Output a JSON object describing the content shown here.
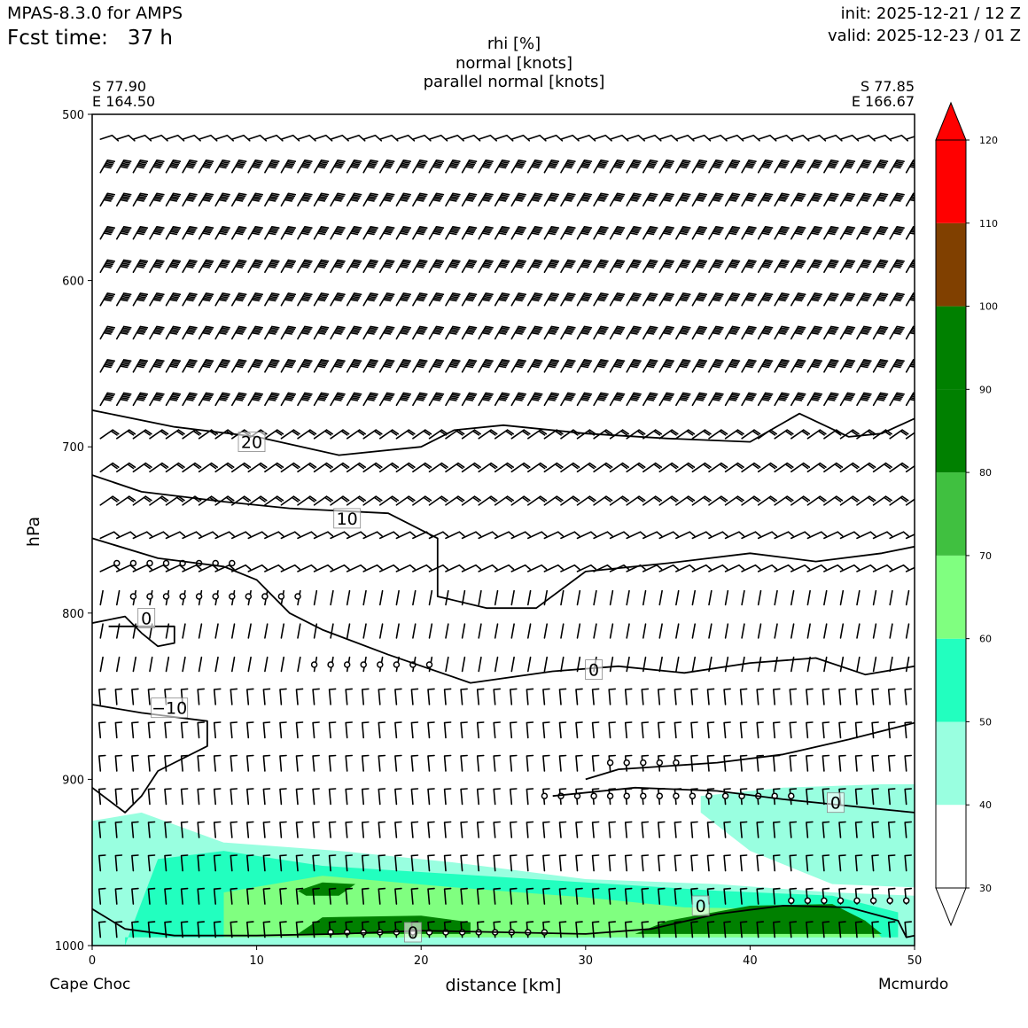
{
  "header": {
    "model": "MPAS-8.3.0 for AMPS",
    "fcst_label": "Fcst time:",
    "fcst_value": "37 h",
    "init": "init: 2025-12-21 / 12 Z",
    "valid": "valid: 2025-12-23 / 01 Z"
  },
  "title_lines": [
    "rhi [%]",
    "normal [knots]",
    "parallel normal [knots]"
  ],
  "endpoints": {
    "left": {
      "lat": "S 77.90",
      "lon": "E 164.50",
      "name": "Cape Choc"
    },
    "right": {
      "lat": "S 77.85",
      "lon": "E 166.67",
      "name": "Mcmurdo"
    }
  },
  "chart_data": {
    "type": "heatmap",
    "xlabel": "distance [km]",
    "ylabel": "hPa",
    "xlim": [
      0,
      50
    ],
    "ylim": [
      1000,
      500
    ],
    "x_ticks": [
      "0",
      "10",
      "20",
      "30",
      "40",
      "50"
    ],
    "y_ticks": [
      "500",
      "600",
      "700",
      "800",
      "900",
      "1000"
    ],
    "colorbar": {
      "levels": [
        30,
        40,
        50,
        60,
        70,
        80,
        90,
        100,
        110,
        120
      ],
      "tick_labels": [
        "30",
        "40",
        "50",
        "60",
        "70",
        "80",
        "90",
        "100",
        "110",
        "120"
      ],
      "colors": [
        "#ffffff",
        "#99ffe0",
        "#22ffbf",
        "#80ff80",
        "#40c040",
        "#008000",
        "#008000",
        "#804000",
        "#ff0000"
      ],
      "extend": "both"
    },
    "rhi_regions": [
      {
        "level": 40,
        "color": "#99ffe0",
        "points": [
          [
            0,
            925
          ],
          [
            3,
            920
          ],
          [
            8,
            938
          ],
          [
            15,
            943
          ],
          [
            22,
            950
          ],
          [
            30,
            960
          ],
          [
            38,
            963
          ],
          [
            45,
            968
          ],
          [
            50,
            970
          ],
          [
            50,
            1000
          ],
          [
            0,
            1000
          ]
        ]
      },
      {
        "level": 40,
        "color": "#99ffe0",
        "points": [
          [
            37,
            910
          ],
          [
            42,
            905
          ],
          [
            48,
            903
          ],
          [
            50,
            903
          ],
          [
            50,
            965
          ],
          [
            45,
            963
          ],
          [
            40,
            943
          ],
          [
            37,
            920
          ]
        ]
      },
      {
        "level": 50,
        "color": "#22ffbf",
        "points": [
          [
            2,
            1000
          ],
          [
            4,
            948
          ],
          [
            8,
            943
          ],
          [
            14,
            952
          ],
          [
            22,
            957
          ],
          [
            30,
            962
          ],
          [
            38,
            967
          ],
          [
            45,
            970
          ],
          [
            49,
            980
          ],
          [
            49,
            995
          ],
          [
            2,
            995
          ]
        ]
      },
      {
        "level": 60,
        "color": "#80ff80",
        "points": [
          [
            8,
            968
          ],
          [
            14,
            958
          ],
          [
            22,
            965
          ],
          [
            30,
            971
          ],
          [
            36,
            977
          ],
          [
            42,
            978
          ],
          [
            47,
            985
          ],
          [
            48,
            995
          ],
          [
            8,
            995
          ]
        ]
      },
      {
        "level": 80,
        "color": "#008000",
        "points": [
          [
            12.5,
            993
          ],
          [
            14,
            983
          ],
          [
            20,
            982
          ],
          [
            23,
            986
          ],
          [
            23,
            993
          ]
        ]
      },
      {
        "level": 80,
        "color": "#008000",
        "points": [
          [
            33,
            993
          ],
          [
            35,
            985
          ],
          [
            40,
            976
          ],
          [
            45,
            975
          ],
          [
            47,
            985
          ],
          [
            48,
            993
          ]
        ]
      },
      {
        "level": 80,
        "color": "#008000",
        "points": [
          [
            12.5,
            967
          ],
          [
            14,
            962
          ],
          [
            16,
            963
          ],
          [
            15,
            970
          ],
          [
            13,
            970
          ]
        ]
      }
    ],
    "contours": [
      {
        "value": 20,
        "points": [
          [
            0,
            678
          ],
          [
            5,
            688
          ],
          [
            10,
            694
          ],
          [
            15,
            705
          ],
          [
            20,
            700
          ],
          [
            22,
            690
          ],
          [
            25,
            687
          ],
          [
            30,
            692
          ],
          [
            35,
            695
          ],
          [
            40,
            697
          ],
          [
            43,
            680
          ],
          [
            46,
            694
          ],
          [
            48,
            692
          ],
          [
            50,
            683
          ]
        ]
      },
      {
        "value": 10,
        "points": [
          [
            0,
            717
          ],
          [
            3,
            727
          ],
          [
            8,
            733
          ],
          [
            12,
            737
          ],
          [
            18,
            740
          ],
          [
            21,
            755
          ],
          [
            21,
            790
          ],
          [
            24,
            797
          ],
          [
            27,
            797
          ],
          [
            30,
            775
          ],
          [
            35,
            770
          ],
          [
            40,
            764
          ],
          [
            44,
            769
          ],
          [
            48,
            764
          ],
          [
            50,
            760
          ]
        ]
      },
      {
        "value": 0,
        "points": [
          [
            0,
            755
          ],
          [
            4,
            767
          ],
          [
            8,
            772
          ],
          [
            10,
            780
          ],
          [
            12,
            800
          ],
          [
            14,
            810
          ],
          [
            18,
            825
          ],
          [
            23,
            842
          ],
          [
            28,
            835
          ],
          [
            32,
            832
          ],
          [
            36,
            836
          ],
          [
            40,
            830
          ],
          [
            44,
            827
          ],
          [
            47,
            837
          ],
          [
            50,
            832
          ]
        ]
      },
      {
        "value": 0,
        "points": [
          [
            0,
            806
          ],
          [
            2,
            802
          ],
          [
            3,
            812
          ],
          [
            4,
            820
          ],
          [
            5,
            818
          ],
          [
            5,
            808
          ],
          [
            1,
            808
          ]
        ]
      },
      {
        "value": -10,
        "points": [
          [
            0,
            855
          ],
          [
            3,
            860
          ],
          [
            7,
            865
          ],
          [
            7,
            880
          ],
          [
            4,
            895
          ],
          [
            3,
            910
          ],
          [
            2,
            920
          ],
          [
            0,
            905
          ]
        ]
      },
      {
        "value": 0,
        "points": [
          [
            30,
            900
          ],
          [
            32,
            894
          ],
          [
            35,
            892
          ],
          [
            38,
            890
          ],
          [
            42,
            885
          ],
          [
            46,
            876
          ],
          [
            50,
            866
          ]
        ]
      },
      {
        "value": 0,
        "points": [
          [
            28,
            910
          ],
          [
            33,
            905
          ],
          [
            38,
            907
          ],
          [
            42,
            912
          ],
          [
            45,
            915
          ],
          [
            48,
            918
          ],
          [
            50,
            920
          ]
        ]
      },
      {
        "value": 0,
        "points": [
          [
            0,
            978
          ],
          [
            2,
            990
          ],
          [
            5,
            994
          ],
          [
            10,
            994
          ],
          [
            15,
            993
          ],
          [
            20,
            991
          ],
          [
            25,
            992
          ],
          [
            30,
            993
          ],
          [
            34,
            990
          ],
          [
            38,
            981
          ],
          [
            42,
            976
          ],
          [
            46,
            977
          ],
          [
            49,
            985
          ],
          [
            49.5,
            995
          ],
          [
            50,
            994
          ]
        ]
      }
    ],
    "contour_labels": [
      {
        "text": "20",
        "x": 9.7,
        "y": 697
      },
      {
        "text": "10",
        "x": 15.5,
        "y": 743
      },
      {
        "text": "0",
        "x": 3.3,
        "y": 803
      },
      {
        "text": "0",
        "x": 30.5,
        "y": 834
      },
      {
        "text": "−10",
        "x": 4.7,
        "y": 857
      },
      {
        "text": "0",
        "x": 45.2,
        "y": 914
      },
      {
        "text": "0",
        "x": 19.5,
        "y": 992
      },
      {
        "text": "0",
        "x": 37,
        "y": 976
      }
    ],
    "calm_points": [
      {
        "y": 770,
        "x_start": 1.5,
        "x_end": 9,
        "dx": 1
      },
      {
        "y": 790,
        "x_start": 2.5,
        "x_end": 12.5,
        "dx": 1
      },
      {
        "y": 831,
        "x_start": 13.5,
        "x_end": 20.5,
        "dx": 1
      },
      {
        "y": 890,
        "x_start": 31.5,
        "x_end": 35.5,
        "dx": 1
      },
      {
        "y": 910,
        "x_start": 27.5,
        "x_end": 42.5,
        "dx": 1
      },
      {
        "y": 973,
        "x_start": 42.5,
        "x_end": 50,
        "dx": 1
      },
      {
        "y": 992,
        "x_start": 14.5,
        "x_end": 28,
        "dx": 1
      }
    ],
    "barb_grid": {
      "x_start": 0.5,
      "x_end": 49.5,
      "dx": 1,
      "rows": [
        {
          "p": 515,
          "style": "chevron"
        },
        {
          "p": 535,
          "style": "heavy"
        },
        {
          "p": 555,
          "style": "heavy"
        },
        {
          "p": 575,
          "style": "heavy"
        },
        {
          "p": 595,
          "style": "heavy"
        },
        {
          "p": 615,
          "style": "heavy"
        },
        {
          "p": 635,
          "style": "heavy"
        },
        {
          "p": 655,
          "style": "heavy"
        },
        {
          "p": 675,
          "style": "heavy"
        },
        {
          "p": 695,
          "style": "medium"
        },
        {
          "p": 715,
          "style": "medium"
        },
        {
          "p": 735,
          "style": "medium"
        },
        {
          "p": 755,
          "style": "light"
        },
        {
          "p": 775,
          "style": "light"
        },
        {
          "p": 795,
          "style": "stroke"
        },
        {
          "p": 815,
          "style": "stroke"
        },
        {
          "p": 835,
          "style": "stroke"
        },
        {
          "p": 855,
          "style": "hook"
        },
        {
          "p": 875,
          "style": "hook"
        },
        {
          "p": 895,
          "style": "hook"
        },
        {
          "p": 915,
          "style": "hook"
        },
        {
          "p": 935,
          "style": "hook"
        },
        {
          "p": 955,
          "style": "hook"
        },
        {
          "p": 975,
          "style": "hook"
        },
        {
          "p": 995,
          "style": "hook"
        }
      ]
    }
  }
}
